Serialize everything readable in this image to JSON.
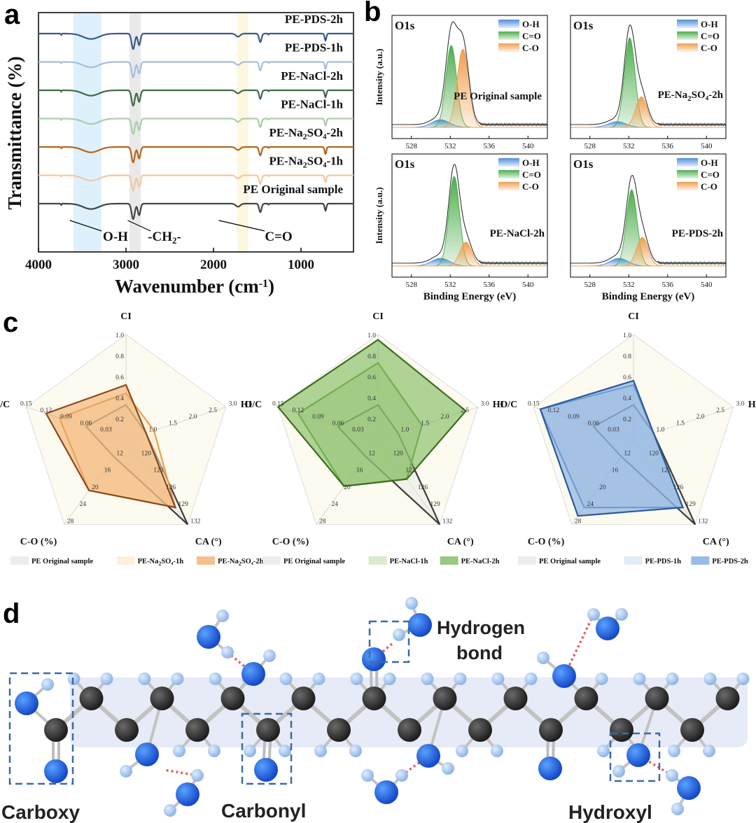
{
  "panels": {
    "a": "a",
    "b": "b",
    "c": "c",
    "d": "d"
  },
  "chart_data": [
    {
      "panel": "a",
      "type": "line",
      "xlabel": "Wavenumber (cm⁻¹)",
      "ylabel": "Transmittance (%)",
      "xlim": [
        4000,
        400
      ],
      "x_reversed": true,
      "xticks": [
        4000,
        3000,
        2000,
        1000
      ],
      "series": [
        {
          "name": "PE-PDS-2h",
          "color": "#3a5a8a"
        },
        {
          "name": "PE-PDS-1h",
          "color": "#a7bcdc"
        },
        {
          "name": "PE-NaCl-2h",
          "color": "#3f6b45"
        },
        {
          "name": "PE-NaCl-1h",
          "color": "#a9cfa6"
        },
        {
          "name": "PE-Na₂SO₄-2h",
          "color": "#b5651d"
        },
        {
          "name": "PE-Na₂SO₄-1h",
          "color": "#f2c9a0"
        },
        {
          "name": "PE Original sample",
          "color": "#444444"
        }
      ],
      "peaks": [
        {
          "x": 3400,
          "depth": 0.35,
          "width": 90
        },
        {
          "x": 2918,
          "depth": 1.0,
          "width": 18
        },
        {
          "x": 2850,
          "depth": 0.75,
          "width": 15
        },
        {
          "x": 1720,
          "depth": 0.2,
          "width": 25
        },
        {
          "x": 1465,
          "depth": 0.55,
          "width": 14
        },
        {
          "x": 720,
          "depth": 0.45,
          "width": 10
        }
      ],
      "bands": [
        {
          "from": 3600,
          "to": 3280,
          "color": "#d6ecfb",
          "label": "O-H"
        },
        {
          "from": 2960,
          "to": 2830,
          "color": "#e4e4e4",
          "label": "-CH₂-"
        },
        {
          "from": 1730,
          "to": 1600,
          "color": "#fbf5d6",
          "label": "C=O"
        }
      ]
    },
    {
      "panel": "b",
      "type": "area",
      "xlabel": "Binding Energy (eV)",
      "ylabel": "Intensity (a.u.)",
      "xlim": [
        526,
        542
      ],
      "xticks": [
        528,
        532,
        536,
        540
      ],
      "legend": [
        "O-H",
        "C=O",
        "C-O"
      ],
      "legend_colors": [
        "#4f8fdc",
        "#4fae4f",
        "#f0a050"
      ],
      "subplots": [
        {
          "title": "O1s",
          "sample": "PE Original sample",
          "peaks": [
            {
              "name": "O-H",
              "center": 531.0,
              "height": 0.08
            },
            {
              "name": "C=O",
              "center": 532.1,
              "height": 0.86
            },
            {
              "name": "C-O",
              "center": 533.3,
              "height": 0.82
            }
          ]
        },
        {
          "title": "O1s",
          "sample": "PE-Na₂SO₄-2h",
          "peaks": [
            {
              "name": "O-H",
              "center": 530.8,
              "height": 0.06
            },
            {
              "name": "C=O",
              "center": 532.1,
              "height": 0.94
            },
            {
              "name": "C-O",
              "center": 533.3,
              "height": 0.32
            }
          ]
        },
        {
          "title": "O1s",
          "sample": "PE-NaCl-2h",
          "peaks": [
            {
              "name": "O-H",
              "center": 531.0,
              "height": 0.08
            },
            {
              "name": "C=O",
              "center": 532.4,
              "height": 0.94
            },
            {
              "name": "C-O",
              "center": 533.6,
              "height": 0.25
            }
          ]
        },
        {
          "title": "O1s",
          "sample": "PE-PDS-2h",
          "peaks": [
            {
              "name": "O-H",
              "center": 531.0,
              "height": 0.08
            },
            {
              "name": "C=O",
              "center": 532.3,
              "height": 0.8
            },
            {
              "name": "C-O",
              "center": 533.4,
              "height": 0.3
            }
          ]
        }
      ]
    },
    {
      "panel": "c",
      "type": "radar",
      "axes": [
        {
          "name": "CI",
          "ticks": [
            "0.2",
            "0.4",
            "0.6",
            "0.8",
            "1.0"
          ],
          "min": 0,
          "max": 1.0
        },
        {
          "name": "HI",
          "ticks": [
            "1.0",
            "1.5",
            "2.0",
            "2.5",
            "3.0"
          ],
          "min": 0.5,
          "max": 3.0
        },
        {
          "name": "CA (°)",
          "ticks": [
            "120",
            "123",
            "126",
            "129",
            "132"
          ],
          "min": 117,
          "max": 132
        },
        {
          "name": "C-O (%)",
          "ticks": [
            "12",
            "16",
            "20",
            "24",
            "28"
          ],
          "min": 8,
          "max": 28
        },
        {
          "name": "O/C",
          "ticks": [
            "0.03",
            "0.06",
            "0.09",
            "0.12",
            "0.15"
          ],
          "min": 0,
          "max": 0.15
        }
      ],
      "charts": [
        {
          "series": [
            {
              "name": "PE Original sample",
              "values": [
                0.33,
                1.0,
                132,
                12,
                0.06
              ],
              "fill": "#e6e6e6",
              "stroke": "#3d3d3d"
            },
            {
              "name": "PE-Na₂SO₄-1h",
              "values": [
                0.44,
                1.2,
                129,
                20,
                0.1
              ],
              "fill": "#fbe9c8",
              "stroke": "#e5a050"
            },
            {
              "name": "PE-Na₂SO₄-2h",
              "values": [
                0.52,
                1.0,
                129,
                20,
                0.12
              ],
              "fill": "#f0a65e",
              "stroke": "#8a4a1a"
            }
          ]
        },
        {
          "series": [
            {
              "name": "PE Original sample",
              "values": [
                0.33,
                1.0,
                132,
                12,
                0.06
              ],
              "fill": "#e6e6e6",
              "stroke": "#3d3d3d"
            },
            {
              "name": "PE-NaCl-1h",
              "values": [
                0.73,
                1.6,
                124,
                19,
                0.12
              ],
              "fill": "#c9e2b0",
              "stroke": "#7aa85a"
            },
            {
              "name": "PE-NaCl-2h",
              "values": [
                0.95,
                2.7,
                124,
                19,
                0.15
              ],
              "fill": "#6fb04a",
              "stroke": "#3c6e1f"
            }
          ]
        },
        {
          "series": [
            {
              "name": "PE Original sample",
              "values": [
                0.33,
                1.0,
                132,
                12,
                0.06
              ],
              "fill": "#e6e6e6",
              "stroke": "#3d3d3d"
            },
            {
              "name": "PE-PDS-1h",
              "values": [
                0.52,
                1.0,
                129,
                24,
                0.14
              ],
              "fill": "#d5e4f5",
              "stroke": "#6a9bd0"
            },
            {
              "name": "PE-PDS-2h",
              "values": [
                0.56,
                1.0,
                129,
                26,
                0.14
              ],
              "fill": "#6f9fd8",
              "stroke": "#2a5a9a"
            }
          ]
        }
      ]
    }
  ],
  "panel_d": {
    "labels": [
      "Hydrogen bond",
      "Carboxy",
      "Carbonyl",
      "Hydroxyl"
    ]
  }
}
